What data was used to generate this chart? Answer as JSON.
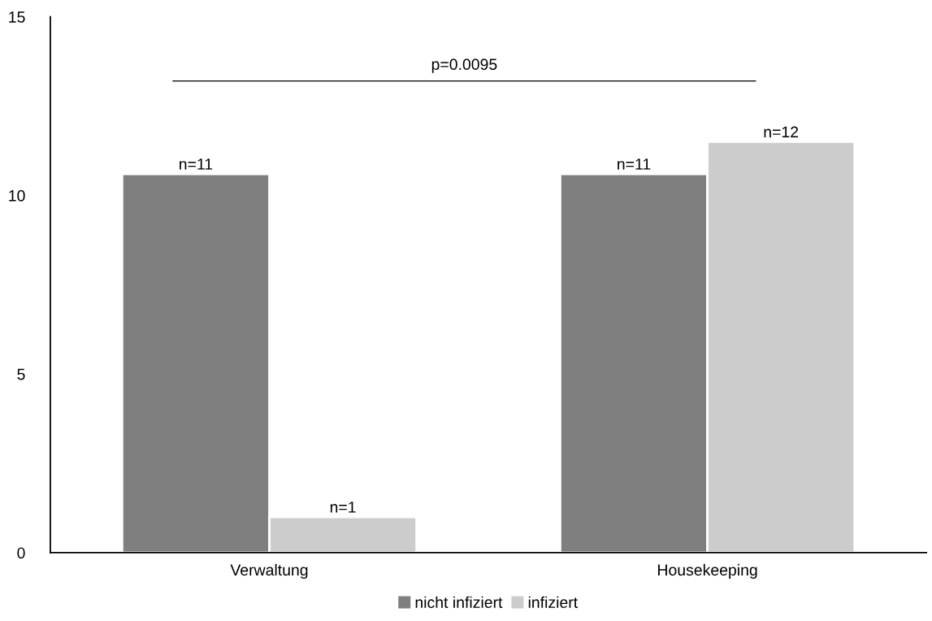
{
  "chart_data": {
    "type": "bar",
    "categories": [
      "Verwaltung",
      "Housekeeping"
    ],
    "series": [
      {
        "name": "nicht infiziert",
        "color": "#7f7f7f",
        "values": [
          10.6,
          10.6
        ],
        "value_labels": [
          "n=11",
          "n=11"
        ]
      },
      {
        "name": "infiziert",
        "color": "#cccccc",
        "values": [
          1.0,
          11.5
        ],
        "value_labels": [
          "n=1",
          "n=12"
        ]
      }
    ],
    "ylim": [
      0,
      15
    ],
    "yticks": [
      0,
      5,
      10,
      15
    ],
    "grid": false,
    "legend": "bottom",
    "annotations": [
      "p=0.0095"
    ]
  }
}
